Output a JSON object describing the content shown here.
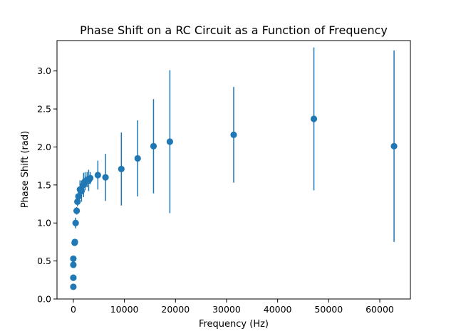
{
  "chart_data": {
    "type": "scatter",
    "title": "Phase Shift on a RC Circuit as a Function of Frequency",
    "xlabel": "Frequency (Hz)",
    "ylabel": "Phase Shift (rad)",
    "xlim": [
      -3200,
      66000
    ],
    "ylim": [
      0.0,
      3.4
    ],
    "xticks": [
      0,
      10000,
      20000,
      30000,
      40000,
      50000,
      60000
    ],
    "yticks": [
      0.0,
      0.5,
      1.0,
      1.5,
      2.0,
      2.5,
      3.0
    ],
    "xtick_labels": [
      "0",
      "10000",
      "20000",
      "30000",
      "40000",
      "50000",
      "60000"
    ],
    "ytick_labels": [
      "0.0",
      "0.5",
      "1.0",
      "1.5",
      "2.0",
      "2.5",
      "3.0"
    ],
    "grid": false,
    "marker_color": "#1f77b4",
    "points": [
      {
        "x": 0,
        "y": 0.16,
        "err": 0.02
      },
      {
        "x": 0,
        "y": 0.28,
        "err": 0.02
      },
      {
        "x": 0,
        "y": 0.45,
        "err": 0.02
      },
      {
        "x": 0,
        "y": 0.53,
        "err": 0.02
      },
      {
        "x": 250,
        "y": 0.74,
        "err": 0.02
      },
      {
        "x": 300,
        "y": 0.75,
        "err": 0.02
      },
      {
        "x": 450,
        "y": 1.0,
        "err": 0.07
      },
      {
        "x": 650,
        "y": 1.16,
        "err": 0.05
      },
      {
        "x": 800,
        "y": 1.28,
        "err": 0.06
      },
      {
        "x": 1000,
        "y": 1.35,
        "err": 0.08
      },
      {
        "x": 1300,
        "y": 1.44,
        "err": 0.12
      },
      {
        "x": 1600,
        "y": 1.42,
        "err": 0.14
      },
      {
        "x": 2000,
        "y": 1.5,
        "err": 0.16
      },
      {
        "x": 2300,
        "y": 1.55,
        "err": 0.12
      },
      {
        "x": 2700,
        "y": 1.57,
        "err": 0.1
      },
      {
        "x": 3000,
        "y": 1.56,
        "err": 0.14
      },
      {
        "x": 3300,
        "y": 1.59,
        "err": 0.08
      },
      {
        "x": 4800,
        "y": 1.63,
        "err": 0.19
      },
      {
        "x": 6300,
        "y": 1.6,
        "err": 0.31
      },
      {
        "x": 9400,
        "y": 1.71,
        "err": 0.48
      },
      {
        "x": 12600,
        "y": 1.85,
        "err": 0.5
      },
      {
        "x": 15700,
        "y": 2.01,
        "err": 0.62
      },
      {
        "x": 18900,
        "y": 2.07,
        "err": 0.94
      },
      {
        "x": 31400,
        "y": 2.16,
        "err": 0.63
      },
      {
        "x": 47100,
        "y": 2.37,
        "err": 0.94
      },
      {
        "x": 62800,
        "y": 2.01,
        "err": 1.26
      }
    ]
  }
}
